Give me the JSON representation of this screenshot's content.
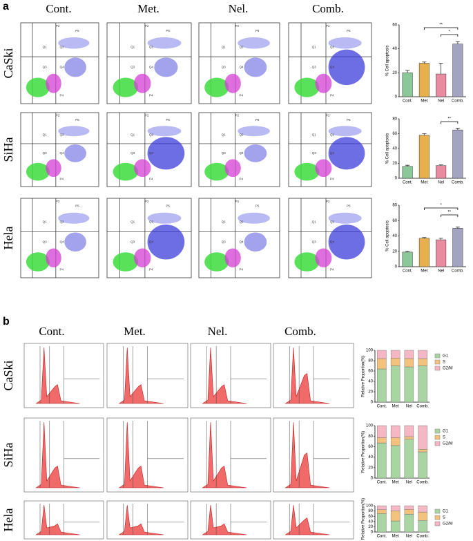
{
  "panel_a": {
    "label": "a",
    "columns": [
      "Cont.",
      "Met.",
      "Nel.",
      "Comb."
    ],
    "rows": [
      "CaSki",
      "SiHa",
      "Hela"
    ],
    "gate_labels": [
      "P2",
      "P5",
      "Q1",
      "Q2",
      "Q3",
      "Q4",
      "P4"
    ]
  },
  "panel_b": {
    "label": "b",
    "columns": [
      "Cont.",
      "Met.",
      "Nel.",
      "Comb."
    ],
    "rows": [
      "CaSki",
      "SiHa",
      "Hela"
    ]
  },
  "chart_data": [
    {
      "type": "bar",
      "ylabel": "% Cell apoptosis",
      "categories": [
        "Cont.",
        "Met",
        "Nel",
        "Comb."
      ],
      "values": [
        20,
        28,
        19,
        44
      ],
      "errors": [
        2,
        1,
        9,
        2
      ],
      "colors": [
        "#8cc79a",
        "#e6b04c",
        "#e98ba1",
        "#a3a3c2"
      ],
      "ylim": [
        0,
        60
      ],
      "yticks": [
        0,
        20,
        40,
        60
      ],
      "annotations": [
        {
          "text": "**",
          "from": 1,
          "to": 3
        },
        {
          "text": "*",
          "from": 2,
          "to": 3
        }
      ]
    },
    {
      "type": "bar",
      "ylabel": "% Cell apoptosis",
      "categories": [
        "Cont.",
        "Met",
        "Nel",
        "Comb."
      ],
      "values": [
        16,
        58,
        17,
        65
      ],
      "errors": [
        1.5,
        2,
        1,
        2.5
      ],
      "colors": [
        "#8cc79a",
        "#e6b04c",
        "#e98ba1",
        "#a3a3c2"
      ],
      "ylim": [
        0,
        80
      ],
      "yticks": [
        0,
        20,
        40,
        60,
        80
      ],
      "annotations": [
        {
          "text": "**",
          "from": 2,
          "to": 3
        }
      ]
    },
    {
      "type": "bar",
      "ylabel": "% Cell apoptosis",
      "categories": [
        "Cont.",
        "Met",
        "Nel",
        "Comb."
      ],
      "values": [
        19,
        37,
        35,
        50
      ],
      "errors": [
        1,
        1,
        2,
        1.5
      ],
      "colors": [
        "#8cc79a",
        "#e6b04c",
        "#e98ba1",
        "#a3a3c2"
      ],
      "ylim": [
        0,
        80
      ],
      "yticks": [
        0,
        20,
        40,
        60,
        80
      ],
      "annotations": [
        {
          "text": "*",
          "from": 1,
          "to": 3
        },
        {
          "text": "**",
          "from": 2,
          "to": 3
        }
      ]
    },
    {
      "type": "stacked_bar",
      "ylabel": "Relative Proportion(%)",
      "categories": [
        "Cont.",
        "Met",
        "Nel",
        "Comb."
      ],
      "ylim": [
        0,
        100
      ],
      "yticks": [
        0,
        20,
        40,
        60,
        80,
        100
      ],
      "series": [
        {
          "name": "G1",
          "color": "#a9d5a3",
          "values": [
            64,
            70,
            68,
            70
          ]
        },
        {
          "name": "S",
          "color": "#f3c27d",
          "values": [
            20,
            15,
            16,
            14
          ]
        },
        {
          "name": "G2/M",
          "color": "#f5b7c4",
          "values": [
            16,
            15,
            16,
            16
          ]
        }
      ]
    },
    {
      "type": "stacked_bar",
      "ylabel": "Relative Proportion(%)",
      "categories": [
        "Cont.",
        "Met",
        "Nel",
        "Comb."
      ],
      "ylim": [
        0,
        100
      ],
      "yticks": [
        0,
        20,
        40,
        60,
        80,
        100
      ],
      "series": [
        {
          "name": "G1",
          "color": "#a9d5a3",
          "values": [
            67,
            62,
            74,
            50
          ]
        },
        {
          "name": "S",
          "color": "#f3c27d",
          "values": [
            10,
            15,
            5,
            5
          ]
        },
        {
          "name": "G2/M",
          "color": "#f5b7c4",
          "values": [
            23,
            23,
            21,
            45
          ]
        }
      ]
    },
    {
      "type": "stacked_bar",
      "ylabel": "Relative Proportion(%)",
      "categories": [
        "Cont.",
        "Met",
        "Nel",
        "Comb."
      ],
      "ylim": [
        0,
        100
      ],
      "yticks": [
        0,
        20,
        40,
        60,
        80,
        100
      ],
      "series": [
        {
          "name": "G1",
          "color": "#a9d5a3",
          "values": [
            70,
            42,
            68,
            44
          ]
        },
        {
          "name": "S",
          "color": "#f3c27d",
          "values": [
            15,
            38,
            18,
            32
          ]
        },
        {
          "name": "G2/M",
          "color": "#f5b7c4",
          "values": [
            15,
            20,
            14,
            24
          ]
        }
      ]
    }
  ]
}
